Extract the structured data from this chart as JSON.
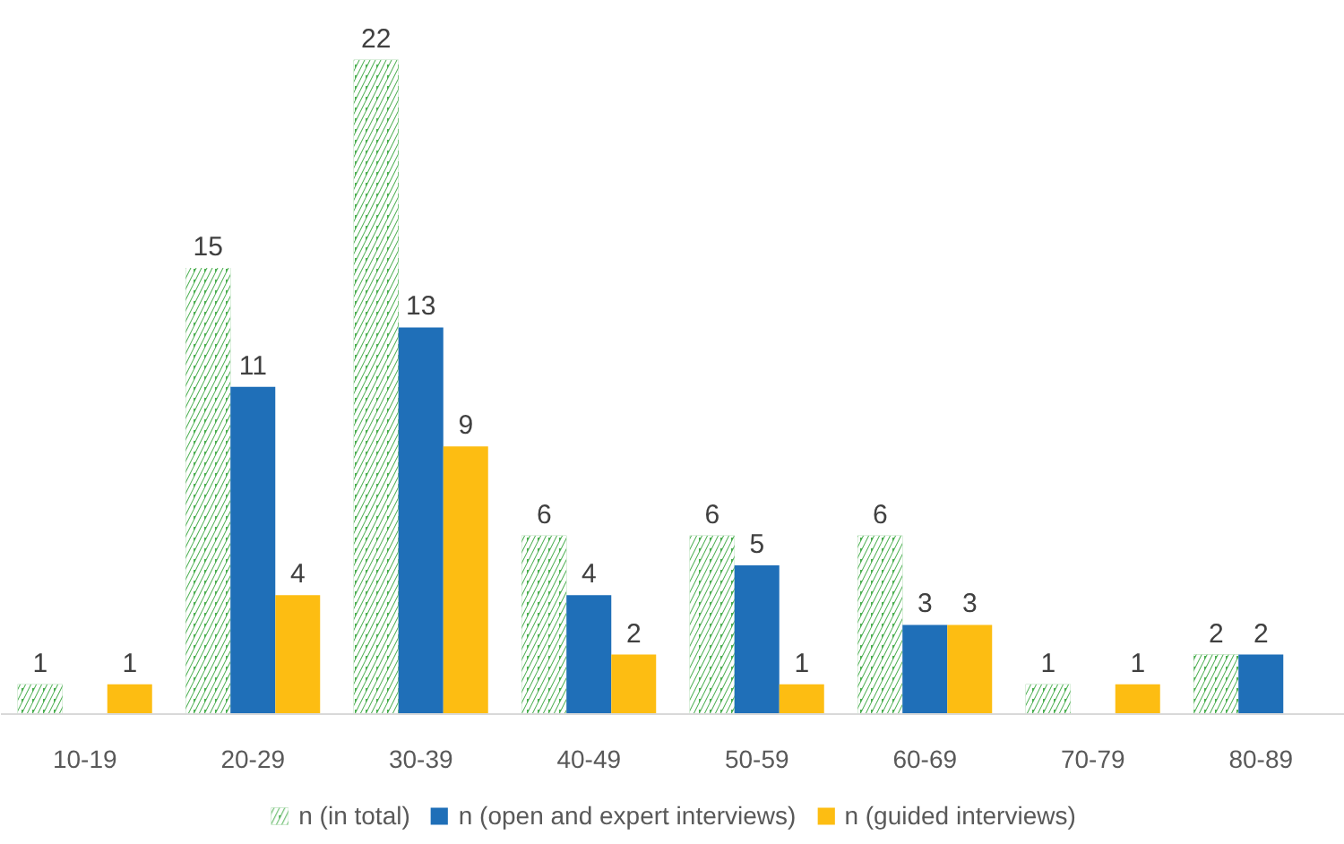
{
  "chart_data": {
    "type": "bar",
    "categories": [
      "10-19",
      "20-29",
      "30-39",
      "40-49",
      "50-59",
      "60-69",
      "70-79",
      "80-89"
    ],
    "series": [
      {
        "name": "n (in total)",
        "color": "#4aae4f",
        "values": [
          1,
          15,
          22,
          6,
          6,
          6,
          1,
          2
        ]
      },
      {
        "name": "n (open and expert interviews)",
        "color": "#1f6fb8",
        "values": [
          null,
          11,
          13,
          4,
          5,
          3,
          null,
          2
        ]
      },
      {
        "name": "n (guided interviews)",
        "color": "#fdbd12",
        "values": [
          1,
          4,
          9,
          2,
          1,
          3,
          1,
          null
        ]
      }
    ],
    "data_labels": true,
    "tick_labels": "x",
    "legend": "bottom"
  }
}
